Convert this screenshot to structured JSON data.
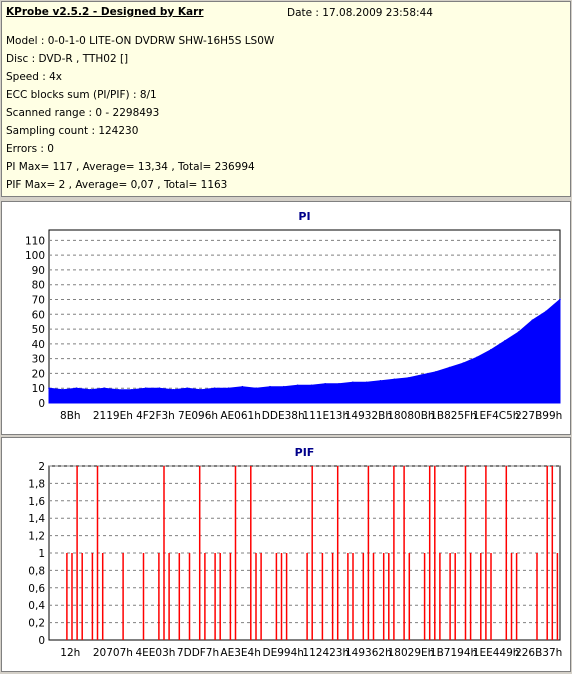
{
  "header": {
    "title": "KProbe v2.5.2 - Designed by Karr",
    "date": "Date : 17.08.2009 23:58:44"
  },
  "info": {
    "model": "Model : 0-0-1-0 LITE-ON DVDRW SHW-16H5S  LS0W",
    "disc": "Disc : DVD-R  , TTH02 []",
    "speed": "Speed : 4x",
    "ecc": "ECC blocks sum (PI/PIF) : 8/1",
    "range": "Scanned range : 0 - 2298493",
    "sampling": "Sampling count : 124230",
    "errors": "Errors : 0",
    "pi_summary": "PI Max= 117 , Average= 13,34 , Total= 236994",
    "pif_summary": "PIF Max= 2 , Average= 0,07 , Total= 1163"
  },
  "colors": {
    "pi": "#0000ff",
    "pif": "#ff0000",
    "title": "#00008b",
    "info_bg": "#ffffe4"
  },
  "chart_data": [
    {
      "type": "area",
      "title": "PI",
      "ylim": [
        0,
        117
      ],
      "yticks": [
        "0",
        "10",
        "20",
        "30",
        "40",
        "50",
        "60",
        "70",
        "80",
        "90",
        "100",
        "110"
      ],
      "xticks": [
        "8Bh",
        "2119Eh",
        "4F2F3h",
        "7E096h",
        "AE061h",
        "DDE38h",
        "111E13h",
        "14932Bh",
        "18080Bh",
        "1B825Fh",
        "1EF4C5h",
        "227B99h"
      ],
      "grid": true,
      "series": [
        {
          "values": [
            10,
            9,
            10,
            9,
            10,
            9,
            9,
            10,
            10,
            9,
            10,
            9,
            10,
            10,
            11,
            10,
            11,
            11,
            12,
            12,
            13,
            13,
            14,
            14,
            15,
            16,
            17,
            19,
            21,
            24,
            27,
            31,
            36,
            42,
            48,
            56,
            62,
            70
          ]
        }
      ]
    },
    {
      "type": "bar",
      "title": "PIF",
      "ylim": [
        0,
        2
      ],
      "yticks": [
        "0",
        "0,2",
        "0,4",
        "0,6",
        "0,8",
        "1",
        "1,2",
        "1,4",
        "1,6",
        "1,8",
        "2"
      ],
      "xticks": [
        "12h",
        "20707h",
        "4EE03h",
        "7DDF7h",
        "AE3E4h",
        "DE994h",
        "112423h",
        "149362h",
        "18029Eh",
        "1B7194h",
        "1EE449h",
        "226B37h"
      ],
      "grid": true,
      "series": [
        {
          "values": [
            0,
            0,
            0,
            1,
            1,
            2,
            1,
            0,
            1,
            2,
            1,
            0,
            0,
            0,
            1,
            0,
            0,
            0,
            1,
            0,
            0,
            1,
            2,
            1,
            0,
            1,
            0,
            1,
            0,
            2,
            1,
            0,
            1,
            1,
            0,
            1,
            2,
            0,
            0,
            2,
            1,
            1,
            0,
            0,
            1,
            1,
            1,
            0,
            0,
            0,
            1,
            2,
            0,
            1,
            0,
            1,
            2,
            0,
            1,
            1,
            0,
            1,
            2,
            1,
            0,
            1,
            1,
            2,
            0,
            2,
            1,
            0,
            0,
            1,
            2,
            2,
            1,
            0,
            1,
            1,
            0,
            2,
            1,
            0,
            1,
            2,
            1,
            0,
            0,
            2,
            1,
            1,
            0,
            0,
            0,
            1,
            0,
            2,
            2,
            1
          ]
        }
      ]
    }
  ]
}
